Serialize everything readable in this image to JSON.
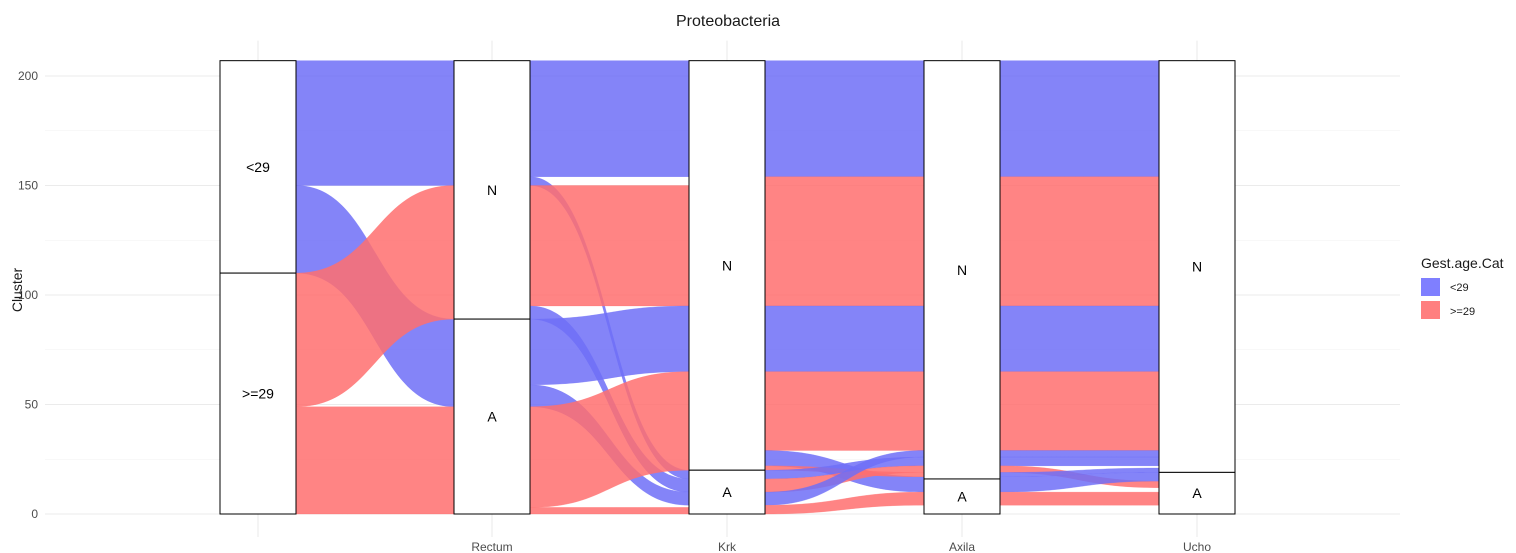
{
  "chart_data": {
    "type": "alluvial",
    "title": "Proteobacteria",
    "ylabel": "Cluster",
    "xlabel": "",
    "ylim": [
      0,
      207
    ],
    "y_ticks": [
      0,
      50,
      100,
      150,
      200
    ],
    "grid": true,
    "axes": [
      "",
      "Rectum",
      "Krk",
      "Axila",
      "Ucho"
    ],
    "strata": [
      [
        {
          "label": "<29",
          "from": 110,
          "to": 207
        },
        {
          "label": ">=29",
          "from": 0,
          "to": 110
        }
      ],
      [
        {
          "label": "N",
          "from": 89,
          "to": 207
        },
        {
          "label": "A",
          "from": 0,
          "to": 89
        }
      ],
      [
        {
          "label": "N",
          "from": 20,
          "to": 207
        },
        {
          "label": "A",
          "from": 0,
          "to": 20
        }
      ],
      [
        {
          "label": "N",
          "from": 16,
          "to": 207
        },
        {
          "label": "A",
          "from": 0,
          "to": 16
        }
      ],
      [
        {
          "label": "N",
          "from": 19,
          "to": 207
        },
        {
          "label": "A",
          "from": 0,
          "to": 19
        }
      ]
    ],
    "flows": [
      [
        {
          "group": "<29",
          "l": [
            150,
            207
          ],
          "r": [
            150,
            207
          ]
        },
        {
          "group": "<29",
          "l": [
            110,
            150
          ],
          "r": [
            49,
            89
          ]
        },
        {
          "group": ">=29",
          "l": [
            49,
            110
          ],
          "r": [
            89,
            150
          ]
        },
        {
          "group": ">=29",
          "l": [
            0,
            49
          ],
          "r": [
            0,
            49
          ]
        }
      ],
      [
        {
          "group": "<29",
          "l": [
            154,
            207
          ],
          "r": [
            154,
            207
          ]
        },
        {
          "group": "<29",
          "l": [
            150,
            154
          ],
          "r": [
            16,
            20
          ]
        },
        {
          "group": ">=29",
          "l": [
            95,
            150
          ],
          "r": [
            95,
            150
          ]
        },
        {
          "group": "<29",
          "l": [
            89,
            95
          ],
          "r": [
            10,
            16
          ]
        },
        {
          "group": "<29",
          "l": [
            59,
            89
          ],
          "r": [
            65,
            95
          ]
        },
        {
          "group": "<29",
          "l": [
            49,
            59
          ],
          "r": [
            4,
            10
          ]
        },
        {
          "group": ">=29",
          "l": [
            3,
            49
          ],
          "r": [
            20,
            65
          ]
        },
        {
          "group": ">=29",
          "l": [
            0,
            3
          ],
          "r": [
            0,
            3
          ]
        }
      ],
      [
        {
          "group": "<29",
          "l": [
            154,
            207
          ],
          "r": [
            154,
            207
          ]
        },
        {
          "group": ">=29",
          "l": [
            95,
            154
          ],
          "r": [
            95,
            154
          ]
        },
        {
          "group": "<29",
          "l": [
            65,
            95
          ],
          "r": [
            65,
            95
          ]
        },
        {
          "group": ">=29",
          "l": [
            29,
            65
          ],
          "r": [
            29,
            65
          ]
        },
        {
          "group": "<29",
          "l": [
            22,
            29
          ],
          "r": [
            10,
            17
          ]
        },
        {
          "group": ">=29",
          "l": [
            20,
            22
          ],
          "r": [
            17,
            19
          ]
        },
        {
          "group": "<29",
          "l": [
            16,
            20
          ],
          "r": [
            22,
            26
          ]
        },
        {
          "group": ">=29",
          "l": [
            10,
            16
          ],
          "r": [
            19,
            22
          ]
        },
        {
          "group": "<29",
          "l": [
            4,
            10
          ],
          "r": [
            26,
            29
          ]
        },
        {
          "group": ">=29",
          "l": [
            0,
            4
          ],
          "r": [
            4,
            10
          ]
        }
      ],
      [
        {
          "group": "<29",
          "l": [
            154,
            207
          ],
          "r": [
            154,
            207
          ]
        },
        {
          "group": ">=29",
          "l": [
            95,
            154
          ],
          "r": [
            95,
            154
          ]
        },
        {
          "group": "<29",
          "l": [
            65,
            95
          ],
          "r": [
            65,
            95
          ]
        },
        {
          "group": ">=29",
          "l": [
            29,
            65
          ],
          "r": [
            29,
            65
          ]
        },
        {
          "group": "<29",
          "l": [
            26,
            29
          ],
          "r": [
            26,
            29
          ]
        },
        {
          "group": "<29",
          "l": [
            22,
            26
          ],
          "r": [
            22,
            26
          ]
        },
        {
          "group": ">=29",
          "l": [
            19,
            22
          ],
          "r": [
            12,
            15
          ]
        },
        {
          "group": "<29",
          "l": [
            17,
            19
          ],
          "r": [
            19,
            21
          ]
        },
        {
          "group": "<29",
          "l": [
            10,
            17
          ],
          "r": [
            15,
            19
          ]
        },
        {
          "group": ">=29",
          "l": [
            4,
            10
          ],
          "r": [
            4,
            10
          ]
        }
      ]
    ],
    "legend": {
      "title": "Gest.age.Cat",
      "position": "right",
      "entries": [
        {
          "label": "<29",
          "color": "#7F7FFF"
        },
        {
          "label": ">=29",
          "color": "#FF7F7F"
        }
      ]
    },
    "colors": {
      "<29": "#6f6ff7",
      ">=29": "#ff6f6f"
    }
  }
}
